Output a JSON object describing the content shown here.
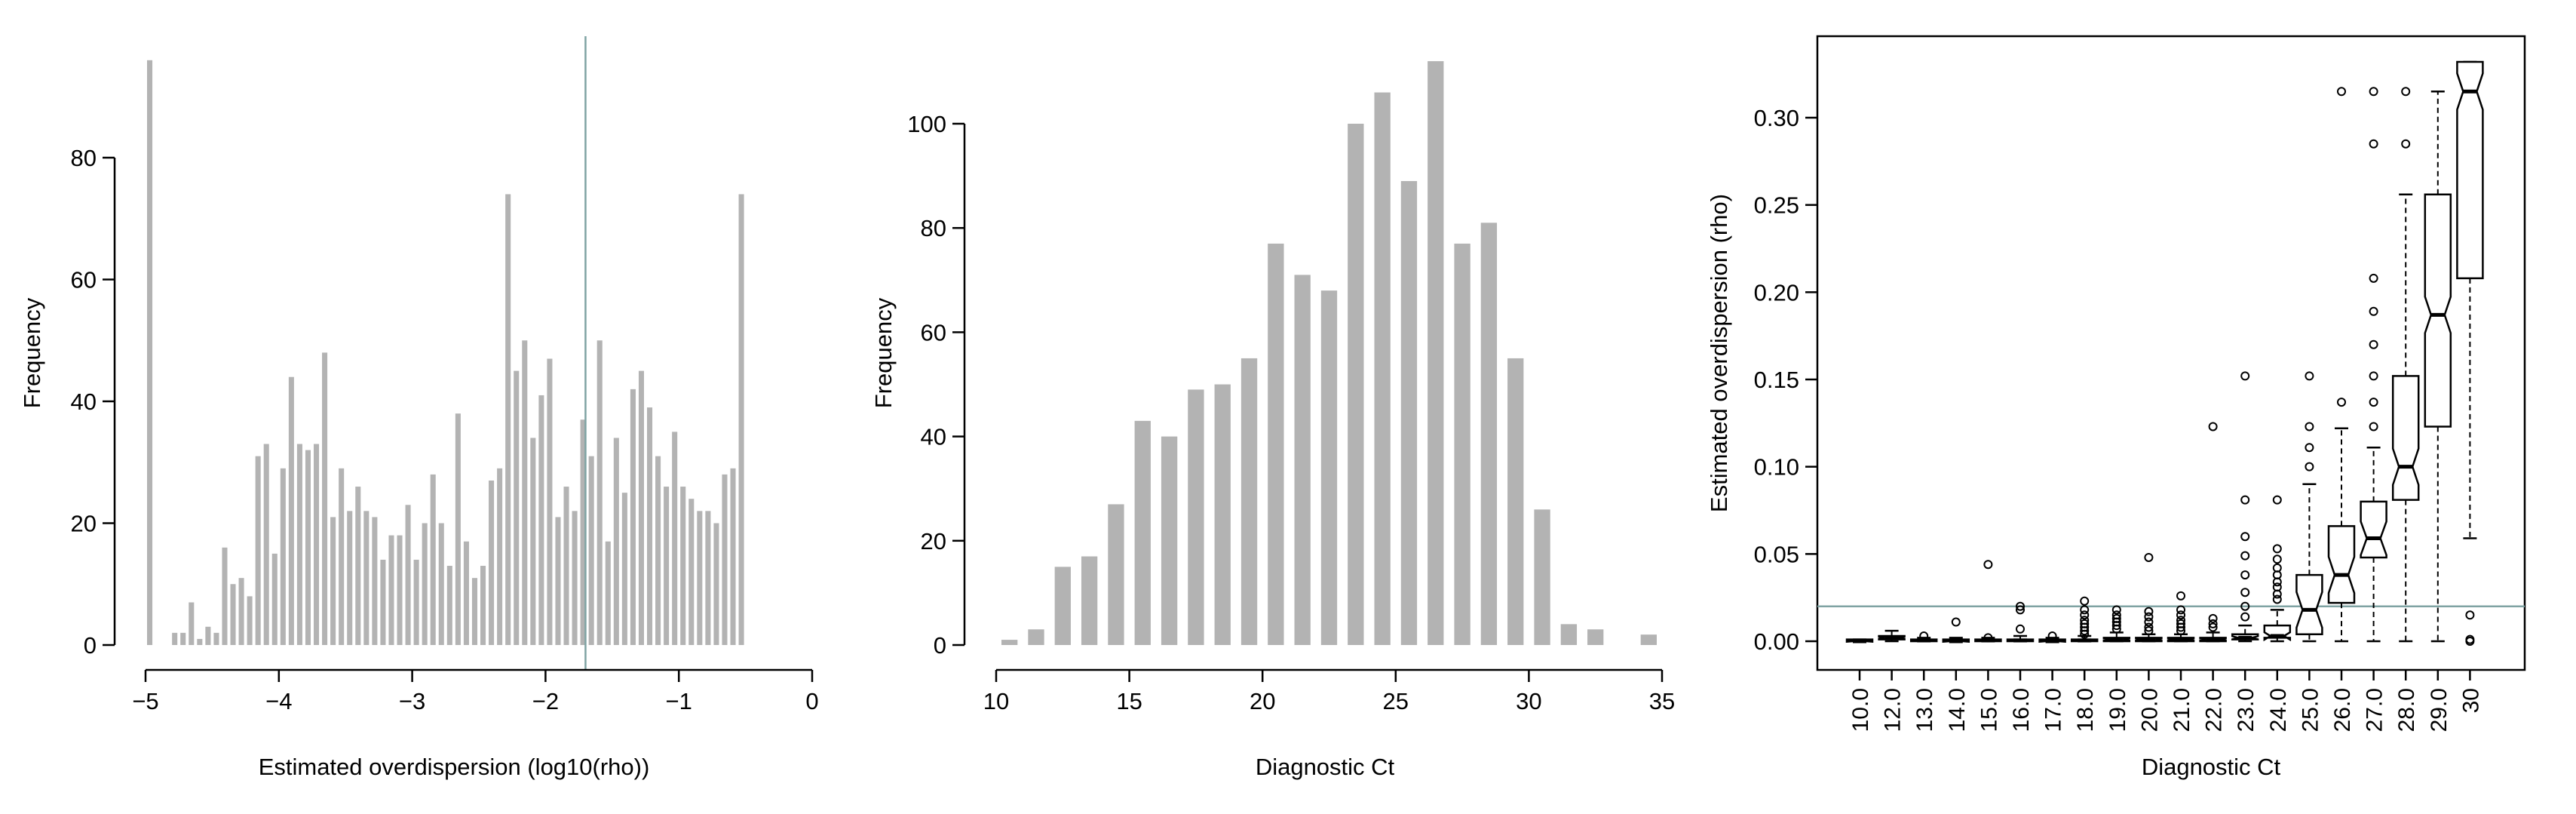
{
  "chart_data": [
    {
      "type": "bar",
      "title": "",
      "xlabel": "Estimated overdispersion (log10(rho))",
      "ylabel": "Frequency",
      "xlim": [
        -5,
        0
      ],
      "ylim": [
        0,
        96
      ],
      "xticks": [
        "−5",
        "−4",
        "−3",
        "−2",
        "−1",
        "0"
      ],
      "yticks": [
        "0",
        "20",
        "40",
        "60",
        "80"
      ],
      "bin_width": 0.0625,
      "bin_left_edges": [
        -5.0,
        -4.875,
        -4.8125,
        -4.75,
        -4.6875,
        -4.625,
        -4.5625,
        -4.5,
        -4.4375,
        -4.375,
        -4.3125,
        -4.25,
        -4.1875,
        -4.125,
        -4.0625,
        -4.0,
        -3.9375,
        -3.875,
        -3.8125,
        -3.75,
        -3.6875,
        -3.625,
        -3.5625,
        -3.5,
        -3.4375,
        -3.375,
        -3.3125,
        -3.25,
        -3.1875,
        -3.125,
        -3.0625,
        -3.0,
        -2.9375,
        -2.875,
        -2.8125,
        -2.75,
        -2.6875,
        -2.625,
        -2.5625,
        -2.5,
        -2.4375,
        -2.375,
        -2.3125,
        -2.25,
        -2.1875,
        -2.125,
        -2.0625,
        -2.0,
        -1.9375,
        -1.875,
        -1.8125,
        -1.75,
        -1.6875,
        -1.625,
        -1.5625,
        -1.5,
        -1.4375,
        -1.375,
        -1.3125,
        -1.25,
        -1.1875,
        -1.125,
        -1.0625,
        -1.0,
        -0.9375,
        -0.875,
        -0.8125,
        -0.75,
        -0.6875,
        -0.625,
        -0.5625,
        -0.5
      ],
      "values": [
        96,
        0,
        2,
        2,
        7,
        1,
        3,
        2,
        16,
        10,
        11,
        8,
        31,
        33,
        15,
        29,
        44,
        33,
        32,
        33,
        48,
        21,
        29,
        22,
        26,
        22,
        21,
        14,
        18,
        18,
        23,
        14,
        20,
        28,
        20,
        13,
        38,
        17,
        11,
        13,
        27,
        29,
        74,
        45,
        50,
        34,
        41,
        47,
        21,
        26,
        22,
        37,
        31,
        50,
        17,
        34,
        25,
        42,
        45,
        39,
        31,
        26,
        35,
        26,
        24,
        22,
        22,
        20,
        28,
        29,
        74,
        0
      ],
      "reference_line_x": -1.7,
      "reference_line_color": "#7fa3a3",
      "bar_color": "#b3b3b3"
    },
    {
      "type": "bar",
      "title": "",
      "xlabel": "Diagnostic Ct",
      "ylabel": "Frequency",
      "xlim": [
        10,
        35
      ],
      "ylim": [
        0,
        112
      ],
      "xticks": [
        "10",
        "15",
        "20",
        "25",
        "30",
        "35"
      ],
      "yticks": [
        "0",
        "20",
        "40",
        "60",
        "80",
        "100"
      ],
      "bin_width": 1,
      "bin_left_edges": [
        10,
        11,
        12,
        13,
        14,
        15,
        16,
        17,
        18,
        19,
        20,
        21,
        22,
        23,
        24,
        25,
        26,
        27,
        28,
        29,
        30,
        31,
        32,
        33,
        34
      ],
      "values": [
        1,
        3,
        15,
        17,
        27,
        43,
        40,
        49,
        50,
        55,
        77,
        71,
        68,
        100,
        106,
        89,
        112,
        77,
        81,
        55,
        26,
        4,
        3,
        0,
        2
      ],
      "bar_color": "#b3b3b3"
    },
    {
      "type": "boxplot",
      "title": "",
      "xlabel": "Diagnostic Ct",
      "ylabel": "Estimated overdispersion (rho)",
      "ylim": [
        -0.015,
        0.335
      ],
      "yticks": [
        "0.00",
        "0.05",
        "0.10",
        "0.15",
        "0.20",
        "0.25",
        "0.30"
      ],
      "categories": [
        "10.0",
        "12.0",
        "13.0",
        "14.0",
        "15.0",
        "16.0",
        "17.0",
        "18.0",
        "19.0",
        "20.0",
        "21.0",
        "22.0",
        "23.0",
        "24.0",
        "25.0",
        "26.0",
        "27.0",
        "28.0",
        "29.0",
        "30"
      ],
      "reference_line_y": 0.02,
      "reference_line_color": "#7fa3a3",
      "boxes": [
        {
          "min": 0.0,
          "q1": 0.0,
          "median": 0.0,
          "q3": 0.001,
          "max": 0.001,
          "outliers": []
        },
        {
          "min": 0.0,
          "q1": 0.001,
          "median": 0.002,
          "q3": 0.003,
          "max": 0.006,
          "outliers": []
        },
        {
          "min": 0.0,
          "q1": 0.0,
          "median": 0.0005,
          "q3": 0.001,
          "max": 0.002,
          "outliers": [
            0.003
          ]
        },
        {
          "min": 0.0,
          "q1": 0.0,
          "median": 0.0,
          "q3": 0.001,
          "max": 0.002,
          "outliers": [
            0.011
          ]
        },
        {
          "min": 0.0,
          "q1": 0.0,
          "median": 0.0005,
          "q3": 0.001,
          "max": 0.002,
          "outliers": [
            0.044,
            0.002
          ]
        },
        {
          "min": 0.0,
          "q1": 0.0,
          "median": 0.0005,
          "q3": 0.001,
          "max": 0.003,
          "outliers": [
            0.02,
            0.018,
            0.007
          ]
        },
        {
          "min": 0.0,
          "q1": 0.0,
          "median": 0.0,
          "q3": 0.001,
          "max": 0.002,
          "outliers": [
            0.003
          ]
        },
        {
          "min": 0.0,
          "q1": 0.0,
          "median": 0.0005,
          "q3": 0.001,
          "max": 0.003,
          "outliers": [
            0.023,
            0.018,
            0.015,
            0.012,
            0.01,
            0.008,
            0.006,
            0.004
          ]
        },
        {
          "min": 0.0,
          "q1": 0.0,
          "median": 0.001,
          "q3": 0.002,
          "max": 0.005,
          "outliers": [
            0.018,
            0.015,
            0.013,
            0.011,
            0.009,
            0.007
          ]
        },
        {
          "min": 0.0,
          "q1": 0.0,
          "median": 0.001,
          "q3": 0.002,
          "max": 0.004,
          "outliers": [
            0.048,
            0.017,
            0.014,
            0.011,
            0.008,
            0.006
          ]
        },
        {
          "min": 0.0,
          "q1": 0.0,
          "median": 0.001,
          "q3": 0.002,
          "max": 0.004,
          "outliers": [
            0.026,
            0.018,
            0.015,
            0.012,
            0.01,
            0.008,
            0.006
          ]
        },
        {
          "min": 0.0,
          "q1": 0.0,
          "median": 0.001,
          "q3": 0.002,
          "max": 0.005,
          "outliers": [
            0.123,
            0.013,
            0.01,
            0.008
          ]
        },
        {
          "min": 0.0,
          "q1": 0.001,
          "median": 0.002,
          "q3": 0.004,
          "max": 0.009,
          "outliers": [
            0.152,
            0.081,
            0.06,
            0.049,
            0.038,
            0.028,
            0.02,
            0.014
          ]
        },
        {
          "min": 0.0,
          "q1": 0.002,
          "median": 0.003,
          "q3": 0.009,
          "max": 0.018,
          "outliers": [
            0.081,
            0.053,
            0.047,
            0.042,
            0.038,
            0.034,
            0.031,
            0.027,
            0.024
          ]
        },
        {
          "min": 0.0,
          "q1": 0.004,
          "median": 0.018,
          "q3": 0.038,
          "max": 0.09,
          "outliers": [
            0.152,
            0.123,
            0.111,
            0.1
          ]
        },
        {
          "min": 0.0,
          "q1": 0.022,
          "median": 0.038,
          "q3": 0.066,
          "max": 0.122,
          "outliers": [
            0.315,
            0.137
          ]
        },
        {
          "min": 0.0,
          "q1": 0.048,
          "median": 0.059,
          "q3": 0.08,
          "max": 0.111,
          "outliers": [
            0.315,
            0.285,
            0.208,
            0.189,
            0.17,
            0.152,
            0.137,
            0.123
          ]
        },
        {
          "min": 0.0,
          "q1": 0.081,
          "median": 0.1,
          "q3": 0.152,
          "max": 0.256,
          "outliers": [
            0.315,
            0.285
          ]
        },
        {
          "min": 0.0,
          "q1": 0.123,
          "median": 0.187,
          "q3": 0.256,
          "max": 0.315,
          "outliers": []
        },
        {
          "min": 0.059,
          "q1": 0.208,
          "median": 0.315,
          "q3": 0.332,
          "max": 0.332,
          "outliers": [
            0.015,
            0.001,
            0.0
          ]
        }
      ]
    }
  ]
}
